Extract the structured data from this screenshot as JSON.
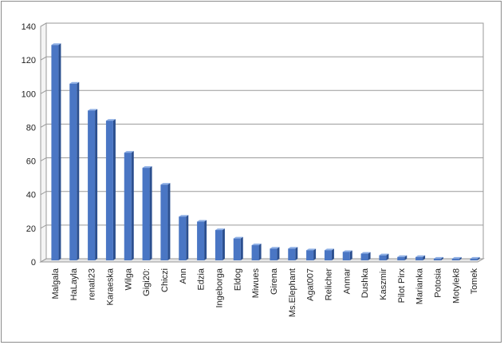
{
  "chart_data": {
    "type": "bar",
    "title": "",
    "xlabel": "",
    "ylabel": "",
    "categories": [
      "Malgala",
      "HaLayla",
      "renati23",
      "Karaeska",
      "Wilga",
      "Gigi20:",
      "Chiczi",
      "Ann",
      "Edzia",
      "Ingeborga",
      "Eldog",
      "Miwues",
      "Girena",
      "Ms.Elephant",
      "Agat007",
      "Relicher",
      "Anmar",
      "Dushka",
      "Kaszmir",
      "Pilot Pirx",
      "Marianka",
      "Potosia",
      "Motylek8",
      "Tomek"
    ],
    "values": [
      128,
      105,
      89,
      83,
      64,
      55,
      45,
      26,
      23,
      18,
      13,
      9,
      7,
      7,
      6,
      6,
      5,
      4,
      3,
      2,
      2,
      1,
      1,
      1
    ],
    "ylim": [
      0,
      140
    ],
    "yticks": [
      0,
      20,
      40,
      60,
      80,
      100,
      120,
      140
    ],
    "grid": true,
    "legend": "none",
    "colors": {
      "bar_front": "#4a76c4",
      "bar_side": "#2b4f8f",
      "bar_top": "#8fb0e6",
      "grid": "#9a9a9a"
    }
  }
}
